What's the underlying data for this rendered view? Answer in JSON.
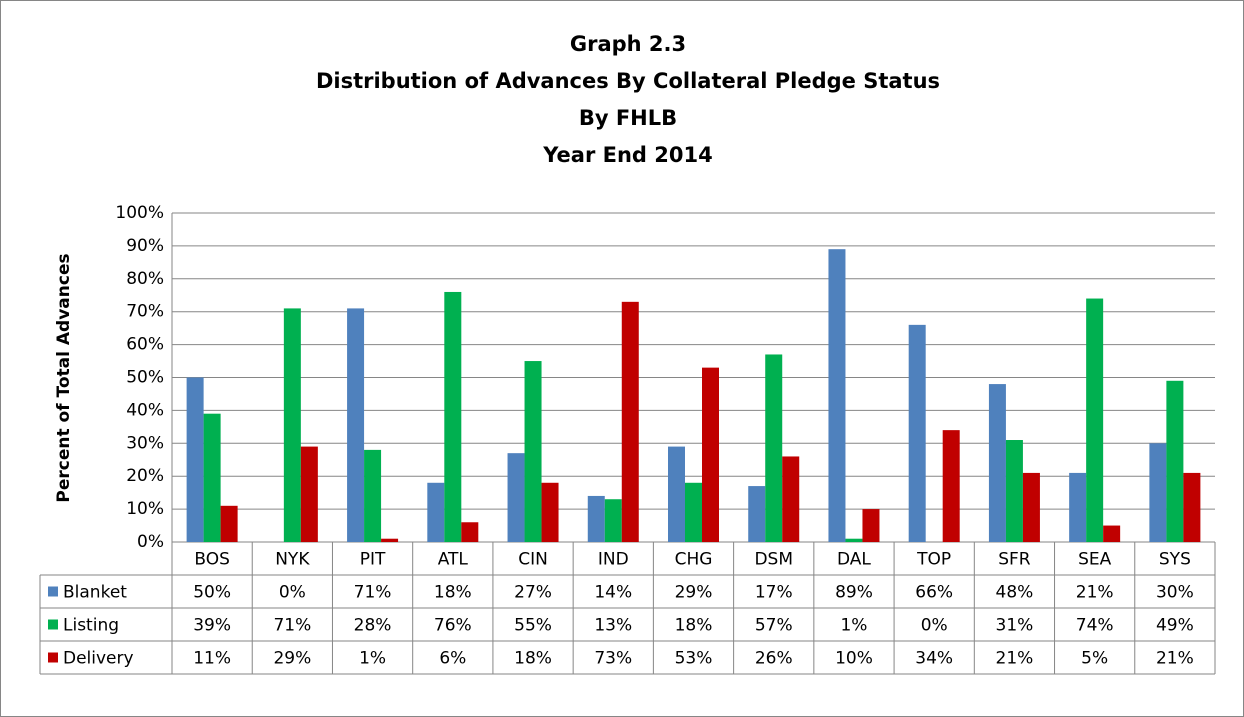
{
  "chart_data": {
    "type": "bar",
    "title": [
      "Graph 2.3",
      "Distribution of Advances By Collateral Pledge Status",
      "By FHLB",
      "Year End 2014"
    ],
    "y_label": "Percent of Total Advances",
    "categories": [
      "BOS",
      "NYK",
      "PIT",
      "ATL",
      "CIN",
      "IND",
      "CHG",
      "DSM",
      "DAL",
      "TOP",
      "SFR",
      "SEA",
      "SYS"
    ],
    "series": [
      {
        "name": "Blanket",
        "color": "#4f81bd",
        "values": [
          50,
          0,
          71,
          18,
          27,
          14,
          29,
          17,
          89,
          66,
          48,
          21,
          30
        ],
        "value_labels": [
          "50%",
          "0%",
          "71%",
          "18%",
          "27%",
          "14%",
          "29%",
          "17%",
          "89%",
          "66%",
          "48%",
          "21%",
          "30%"
        ]
      },
      {
        "name": "Listing",
        "color": "#00b050",
        "values": [
          39,
          71,
          28,
          76,
          55,
          13,
          18,
          57,
          1,
          0,
          31,
          74,
          49
        ],
        "value_labels": [
          "39%",
          "71%",
          "28%",
          "76%",
          "55%",
          "13%",
          "18%",
          "57%",
          "1%",
          "0%",
          "31%",
          "74%",
          "49%"
        ]
      },
      {
        "name": "Delivery",
        "color": "#c00000",
        "values": [
          11,
          29,
          1,
          6,
          18,
          73,
          53,
          26,
          10,
          34,
          21,
          5,
          21
        ],
        "value_labels": [
          "11%",
          "29%",
          "1%",
          "6%",
          "18%",
          "73%",
          "53%",
          "26%",
          "10%",
          "34%",
          "21%",
          "5%",
          "21%"
        ]
      }
    ],
    "ylim": [
      0,
      100
    ],
    "yticks": [
      {
        "value": 0,
        "label": "0%"
      },
      {
        "value": 10,
        "label": "10%"
      },
      {
        "value": 20,
        "label": "20%"
      },
      {
        "value": 30,
        "label": "30%"
      },
      {
        "value": 40,
        "label": "40%"
      },
      {
        "value": 50,
        "label": "50%"
      },
      {
        "value": 60,
        "label": "60%"
      },
      {
        "value": 70,
        "label": "70%"
      },
      {
        "value": 80,
        "label": "80%"
      },
      {
        "value": 90,
        "label": "90%"
      },
      {
        "value": 100,
        "label": "100%"
      }
    ],
    "grid": true
  }
}
